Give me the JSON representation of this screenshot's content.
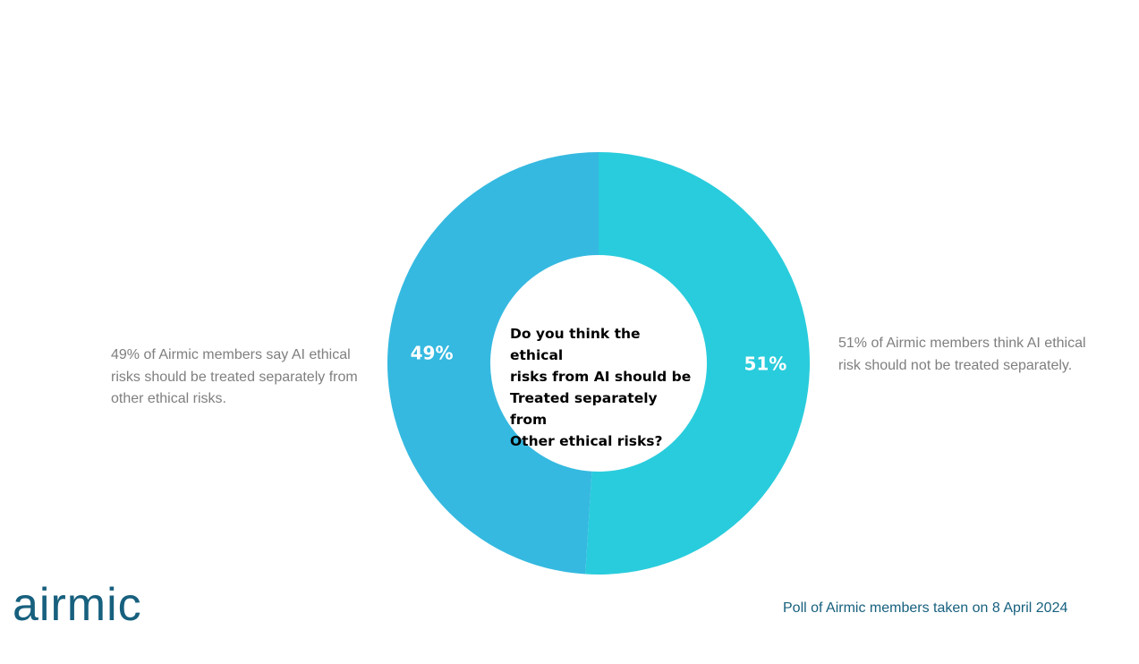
{
  "chart_data": {
    "type": "pie",
    "donut": true,
    "center_text": "Do you think the ethical\nrisks from AI should be\nTreated separately from\nOther ethical risks?",
    "slices": [
      {
        "label": "51%",
        "value": 51,
        "color": "#29ccdc"
      },
      {
        "label": "49%",
        "value": 49,
        "color": "#35b9e0"
      }
    ],
    "legend": "none"
  },
  "annotations": {
    "left_note": "49% of Airmic members say AI ethical risks should be treated separately from other ethical risks.",
    "right_note": "51% of Airmic members think AI ethical risk should not be treated separately."
  },
  "footer": {
    "logo_text": "airmic",
    "poll_note": "Poll of Airmic members taken on 8 April 2024"
  },
  "colors": {
    "brand": "#17607e",
    "note_text": "#7f7f7f"
  }
}
